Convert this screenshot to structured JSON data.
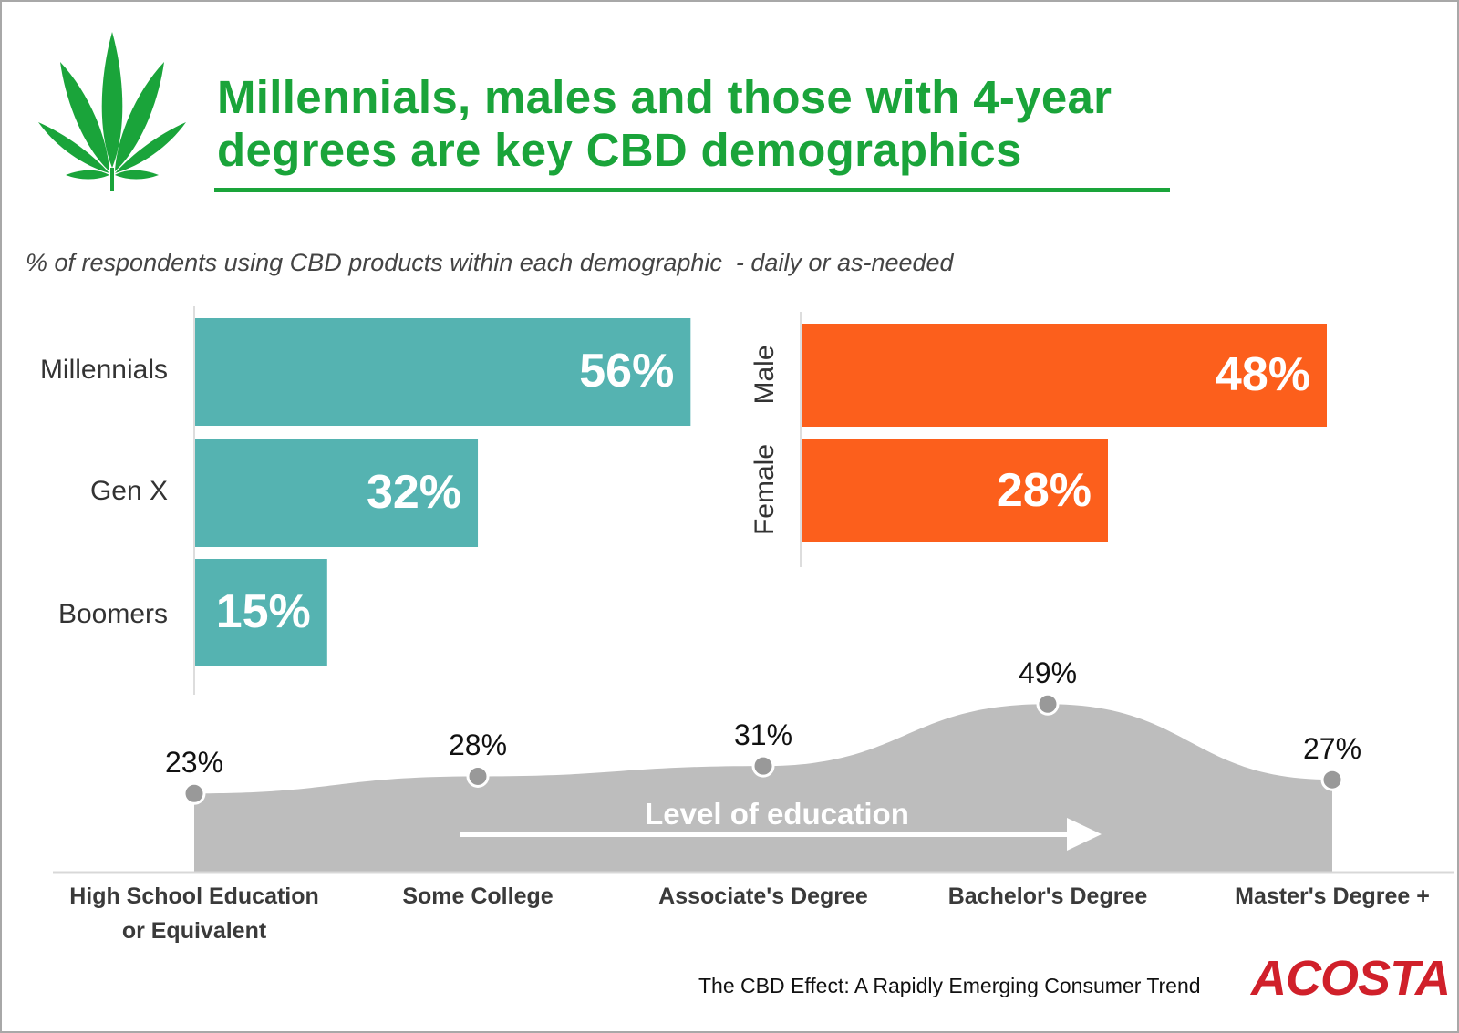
{
  "header": {
    "title_line1": "Millennials, males and those with 4-year",
    "title_line2": "degrees are key CBD demographics",
    "subtitle": "% of respondents using CBD products within each demographic  - daily or as-needed",
    "icon": "cannabis-leaf-icon"
  },
  "colors": {
    "title": "#1aa43a",
    "generation": "#55b3b1",
    "gender": "#fc5f1c",
    "education": "#bdbdbd",
    "brand": "#d0202a"
  },
  "chart_data": [
    {
      "type": "bar",
      "orientation": "horizontal",
      "categories": [
        "Millennials",
        "Gen X",
        "Boomers"
      ],
      "values": [
        56,
        32,
        15
      ],
      "labels": [
        "56%",
        "32%",
        "15%"
      ],
      "unit": "%"
    },
    {
      "type": "bar",
      "orientation": "horizontal",
      "categories": [
        "Male",
        "Female"
      ],
      "values": [
        48,
        28
      ],
      "labels": [
        "48%",
        "28%"
      ],
      "unit": "%"
    },
    {
      "type": "area",
      "categories": [
        "High School Education or Equivalent",
        "Some College",
        "Associate's Degree",
        "Bachelor's Degree",
        "Master's Degree +"
      ],
      "category_lines": [
        [
          "High School Education",
          "or Equivalent"
        ],
        [
          "Some College"
        ],
        [
          "Associate's Degree"
        ],
        [
          "Bachelor's Degree"
        ],
        [
          "Master's Degree +"
        ]
      ],
      "values": [
        23,
        28,
        31,
        49,
        27
      ],
      "labels": [
        "23%",
        "28%",
        "31%",
        "49%",
        "27%"
      ],
      "annotation": "Level of education",
      "unit": "%"
    }
  ],
  "footer": {
    "source": "The CBD Effect: A Rapidly Emerging Consumer Trend",
    "logo": "ACOSTA"
  }
}
